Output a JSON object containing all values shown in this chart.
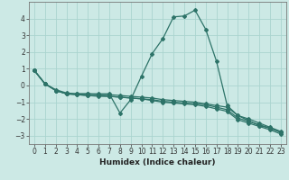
{
  "xlabel": "Humidex (Indice chaleur)",
  "background_color": "#cce9e5",
  "grid_color": "#aad4cf",
  "line_color": "#2d7368",
  "xlim": [
    -0.5,
    23.5
  ],
  "ylim": [
    -3.5,
    5.0
  ],
  "xticks": [
    0,
    1,
    2,
    3,
    4,
    5,
    6,
    7,
    8,
    9,
    10,
    11,
    12,
    13,
    14,
    15,
    16,
    17,
    18,
    19,
    20,
    21,
    22,
    23
  ],
  "yticks": [
    -3,
    -2,
    -1,
    0,
    1,
    2,
    3,
    4
  ],
  "line1_x": [
    0,
    1,
    2,
    3,
    4,
    5,
    6,
    7,
    8,
    9,
    10,
    11,
    12,
    13,
    14,
    15,
    16,
    17,
    18,
    19,
    20,
    21,
    22,
    23
  ],
  "line1_y": [
    0.9,
    0.1,
    -0.3,
    -0.5,
    -0.5,
    -0.5,
    -0.5,
    -0.5,
    -1.65,
    -0.85,
    0.55,
    1.9,
    2.8,
    4.1,
    4.15,
    4.5,
    3.35,
    1.45,
    -1.2,
    -1.8,
    -2.1,
    -2.4,
    -2.55,
    -2.8
  ],
  "line2_x": [
    0,
    1,
    2,
    3,
    4,
    5,
    6,
    7,
    8,
    9,
    10,
    11,
    12,
    13,
    14,
    15,
    16,
    17,
    18,
    19,
    20,
    21,
    22,
    23
  ],
  "line2_y": [
    0.9,
    0.1,
    -0.25,
    -0.45,
    -0.5,
    -0.5,
    -0.55,
    -0.55,
    -0.6,
    -0.65,
    -0.7,
    -0.75,
    -0.85,
    -0.9,
    -0.95,
    -1.0,
    -1.1,
    -1.2,
    -1.3,
    -1.8,
    -2.0,
    -2.25,
    -2.5,
    -2.75
  ],
  "line3_x": [
    0,
    1,
    2,
    3,
    4,
    5,
    6,
    7,
    8,
    9,
    10,
    11,
    12,
    13,
    14,
    15,
    16,
    17,
    18,
    19,
    20,
    21,
    22,
    23
  ],
  "line3_y": [
    0.9,
    0.1,
    -0.3,
    -0.5,
    -0.55,
    -0.6,
    -0.6,
    -0.65,
    -0.7,
    -0.75,
    -0.8,
    -0.85,
    -0.95,
    -1.0,
    -1.05,
    -1.1,
    -1.15,
    -1.3,
    -1.45,
    -1.95,
    -2.15,
    -2.35,
    -2.55,
    -2.8
  ],
  "line4_x": [
    0,
    1,
    2,
    3,
    4,
    5,
    6,
    7,
    8,
    9,
    10,
    11,
    12,
    13,
    14,
    15,
    16,
    17,
    18,
    19,
    20,
    21,
    22,
    23
  ],
  "line4_y": [
    0.9,
    0.1,
    -0.3,
    -0.5,
    -0.55,
    -0.6,
    -0.65,
    -0.65,
    -0.7,
    -0.75,
    -0.8,
    -0.9,
    -1.0,
    -1.05,
    -1.1,
    -1.15,
    -1.25,
    -1.4,
    -1.55,
    -2.05,
    -2.25,
    -2.45,
    -2.65,
    -2.9
  ]
}
